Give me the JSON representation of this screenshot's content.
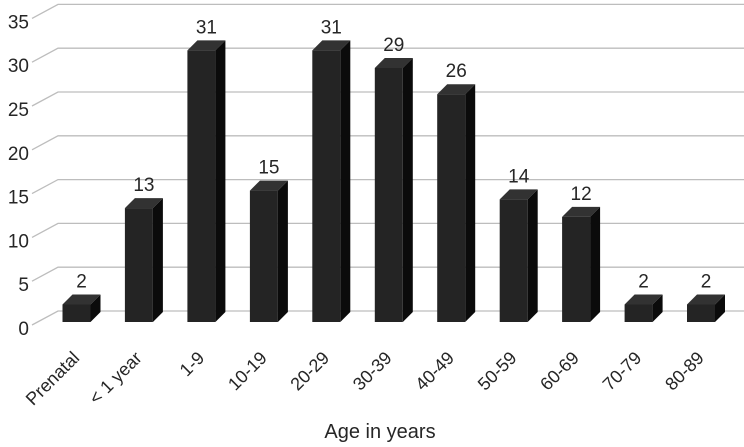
{
  "chart_data": {
    "type": "bar",
    "style": "3d-column",
    "title": "",
    "xlabel": "Age in years",
    "ylabel": "",
    "categories": [
      "Prenatal",
      "< 1 year",
      "1-9",
      "10-19",
      "20-29",
      "30-39",
      "40-49",
      "50-59",
      "60-69",
      "70-79",
      "80-89"
    ],
    "values": [
      2,
      13,
      31,
      15,
      31,
      29,
      26,
      14,
      12,
      2,
      2
    ],
    "yticks": [
      0,
      5,
      10,
      15,
      20,
      25,
      30,
      35
    ],
    "ylim": [
      0,
      35
    ],
    "grid": true,
    "legend": "none",
    "data_labels": true,
    "colors": {
      "bar_front": "#242424",
      "bar_top": "#323232",
      "bar_side": "#0b0b0b",
      "gridline": "#bdbdbd",
      "text": "#262626",
      "background": "#ffffff"
    }
  }
}
